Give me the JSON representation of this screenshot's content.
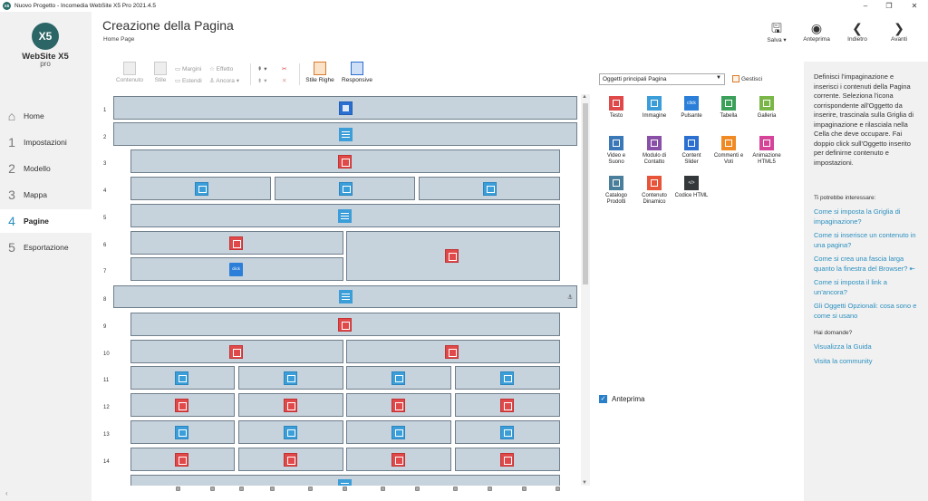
{
  "window": {
    "title": "Nuovo Progetto - Incomedia WebSite X5 Pro 2021.4.5",
    "app_icon": "X5"
  },
  "logo": {
    "mark": "X5",
    "word": "WebSite X5",
    "edition": "pro"
  },
  "sidebar": {
    "items": [
      {
        "num": "",
        "label": "Home",
        "icon": "home-icon"
      },
      {
        "num": "1",
        "label": "Impostazioni"
      },
      {
        "num": "2",
        "label": "Modello"
      },
      {
        "num": "3",
        "label": "Mappa"
      },
      {
        "num": "4",
        "label": "Pagine",
        "active": true
      },
      {
        "num": "5",
        "label": "Esportazione"
      }
    ],
    "collapse": "‹"
  },
  "header": {
    "title": "Creazione della Pagina",
    "breadcrumb": "Home Page",
    "buttons": {
      "salva": "Salva ▾",
      "anteprima": "Anteprima",
      "indietro": "Indietro",
      "avanti": "Avanti"
    }
  },
  "toolbar": {
    "contenuto": "Contenuto",
    "stile": "Stile",
    "margini": "Margini",
    "estendi": "Estendi",
    "effetto": "Effetto",
    "ancora": "Ancora",
    "stile_righe": "Stile Righe",
    "responsive": "Responsive"
  },
  "grid": {
    "row_numbers": [
      "1",
      "2",
      "3",
      "4",
      "5",
      "6",
      "7",
      "8",
      "9",
      "10",
      "11",
      "12",
      "13",
      "14"
    ]
  },
  "objects": {
    "category": "Oggetti principali Pagina",
    "manage": "Gestisci",
    "items": [
      {
        "label": "Testo",
        "color": "#e0494a"
      },
      {
        "label": "Immagine",
        "color": "#3c9ed8"
      },
      {
        "label": "Pulsante",
        "color": "#2b7fd9",
        "glyph": "click"
      },
      {
        "label": "Tabella",
        "color": "#3aa05a"
      },
      {
        "label": "Galleria",
        "color": "#7ab648"
      },
      {
        "label": "Video e Suono",
        "color": "#3a78b8"
      },
      {
        "label": "Modulo di Contatto",
        "color": "#8a4fa6"
      },
      {
        "label": "Content Slider",
        "color": "#2b6fd0"
      },
      {
        "label": "Commenti e Voti",
        "color": "#f08a24"
      },
      {
        "label": "Animazione HTML5",
        "color": "#d6449a"
      },
      {
        "label": "Catalogo Prodotti",
        "color": "#4a7f9c"
      },
      {
        "label": "Contenuto Dinamico",
        "color": "#e8543a"
      },
      {
        "label": "Codice HTML",
        "color": "#34373a",
        "glyph": "</>"
      }
    ],
    "preview_label": "Anteprima"
  },
  "help": {
    "description": "Definisci l'impaginazione e inserisci i contenuti della Pagina corrente. Seleziona l'icona corrispondente all'Oggetto da inserire, trascinala sulla Griglia di impaginazione e rilasciala nella Cella che deve occupare. Fai doppio click sull'Oggetto inserito per definirne contenuto e impostazioni.",
    "subhead": "Ti potrebbe interessare:",
    "links": [
      "Come si imposta la Griglia di impaginazione?",
      "Come si inserisce un contenuto in una pagina?",
      "Come si crea una fascia larga quanto la finestra del Browser? ⇤",
      "Come si imposta il link a un'ancora?",
      "Gli Oggetti Opzionali: cosa sono e come si usano"
    ],
    "subhead2": "Hai domande?",
    "links2": [
      "Visualizza la Guida",
      "Visita la community"
    ]
  }
}
